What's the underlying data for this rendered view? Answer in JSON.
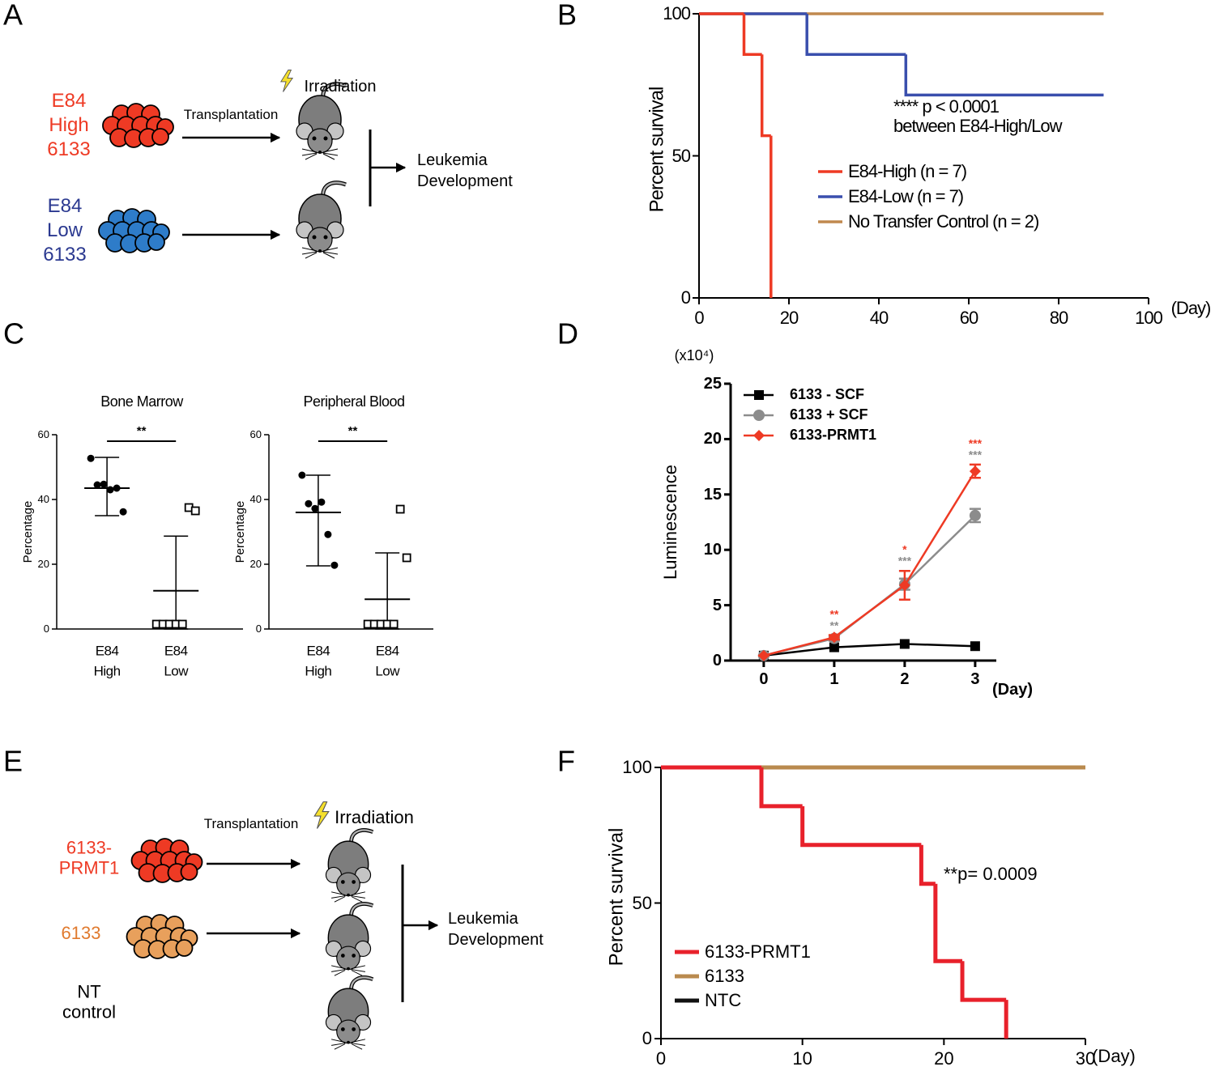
{
  "panel_labels": [
    "A",
    "B",
    "C",
    "D",
    "E",
    "F"
  ],
  "diagram_a": {
    "group_high": "E84\nHigh\n6133",
    "group_low": "E84\nLow\n6133",
    "transfer": "Transplantation",
    "treatment": "Irradiation",
    "outcome": "Leukemia\nDevelopment"
  },
  "diagram_e": {
    "group_prmt1": "6133-\nPRMT1",
    "group_6133": "6133",
    "group_control": "NT\ncontrol",
    "transfer": "Transplantation",
    "treatment": "Irradiation",
    "outcome": "Leukemia\nDevelopment"
  },
  "chart_data": [
    {
      "type": "survival",
      "ylabel": "Percent survival",
      "xunit": "(Day)",
      "xlim": [
        0,
        100
      ],
      "xticks": [
        0,
        20,
        40,
        60,
        80,
        100
      ],
      "ylim": [
        0,
        100
      ],
      "yticks": [
        0,
        50,
        100
      ],
      "annotations": [
        "**** p < 0.0001",
        "between E84-High/Low"
      ],
      "series": [
        {
          "name": "E84-High (n = 7)",
          "color": "#ee3a24",
          "x": [
            0,
            10,
            14,
            16
          ],
          "values": [
            100,
            85.7,
            57.1,
            0
          ]
        },
        {
          "name": "E84-Low (n = 7)",
          "color": "#3a4fad",
          "x": [
            0,
            24,
            46,
            90
          ],
          "values": [
            100,
            85.7,
            71.4,
            71.4
          ]
        },
        {
          "name": "No Transfer Control (n = 2)",
          "color": "#c0894e",
          "x": [
            0,
            90
          ],
          "values": [
            100,
            100
          ]
        }
      ]
    },
    {
      "type": "dot",
      "title": "Bone Marrow",
      "ylabel": "Percentage",
      "categories": [
        "E84\nHigh",
        "E84\nLow"
      ],
      "ylim": [
        0,
        60
      ],
      "yticks": [
        0,
        20,
        40,
        60
      ],
      "values": [
        [
          52.7,
          44.5,
          44.7,
          43,
          43.5,
          36.2
        ],
        [
          1.5,
          1.5,
          1.5,
          1.5,
          1.5,
          37.5,
          36.5
        ]
      ],
      "mean": [
        43.5,
        11.8
      ],
      "upper": [
        53,
        28.7
      ],
      "lower": [
        35,
        0
      ],
      "markers": [
        "filled-circle",
        "open-square"
      ],
      "significance": "**"
    },
    {
      "type": "dot",
      "title": "Peripheral Blood",
      "ylabel": "Percentage",
      "categories": [
        "E84\nHigh",
        "E84\nLow"
      ],
      "ylim": [
        0,
        60
      ],
      "yticks": [
        0,
        20,
        40,
        60
      ],
      "values": [
        [
          47.5,
          38.7,
          37.2,
          39.2,
          29.2,
          19.7
        ],
        [
          1.5,
          1.5,
          1.5,
          1.5,
          1.5,
          37,
          22
        ]
      ],
      "mean": [
        36,
        9.2
      ],
      "upper": [
        47.5,
        23.5
      ],
      "lower": [
        19.5,
        0
      ],
      "markers": [
        "filled-circle",
        "open-square"
      ],
      "significance": "**"
    },
    {
      "type": "line",
      "ylabel": "Luminescence",
      "yunit": "(x10⁴)",
      "xunit": "(Day)",
      "x": [
        0,
        1,
        2,
        3
      ],
      "xlim": [
        -0.47,
        3.3
      ],
      "xticks": [
        0,
        1,
        2,
        3
      ],
      "ylim": [
        0,
        25
      ],
      "yticks": [
        0,
        5,
        10,
        15,
        20,
        25
      ],
      "series": [
        {
          "name": "6133 - SCF",
          "color": "#000000",
          "marker": "square",
          "values": [
            0.45,
            1.2,
            1.5,
            1.3
          ]
        },
        {
          "name": "6133 + SCF",
          "color": "#8c8c8c",
          "marker": "circle",
          "values": [
            0.45,
            2.0,
            6.9,
            13.1
          ],
          "errors": [
            0,
            0.2,
            0.5,
            0.6
          ],
          "stars": [
            null,
            "**",
            "***",
            "***"
          ]
        },
        {
          "name": "6133-PRMT1",
          "color": "#ee3a24",
          "marker": "diamond",
          "values": [
            0.45,
            2.1,
            6.8,
            17.1
          ],
          "errors": [
            0,
            0.2,
            1.3,
            0.6
          ],
          "stars": [
            null,
            "**",
            "*",
            "***"
          ]
        }
      ]
    },
    {
      "type": "survival",
      "ylabel": "Percent survival",
      "xunit": "(Day)",
      "xlim": [
        0,
        30
      ],
      "xticks": [
        0,
        10,
        20,
        30
      ],
      "ylim": [
        0,
        100
      ],
      "yticks": [
        0,
        50,
        100
      ],
      "annotations": [
        "**p= 0.0009"
      ],
      "series": [
        {
          "name": "6133-PRMT1",
          "color": "#e8212b",
          "x": [
            0,
            7.1,
            10,
            18.4,
            19.4,
            21.3,
            24.4
          ],
          "values": [
            100,
            85.7,
            71.4,
            57.1,
            28.6,
            14.3,
            0
          ]
        },
        {
          "name": "6133",
          "color": "#b98a4e",
          "x": [
            0,
            30
          ],
          "values": [
            100,
            100
          ]
        },
        {
          "name": "NTC",
          "color": "#111111",
          "x": [
            0,
            30
          ],
          "values": [
            100,
            100
          ]
        }
      ]
    }
  ]
}
